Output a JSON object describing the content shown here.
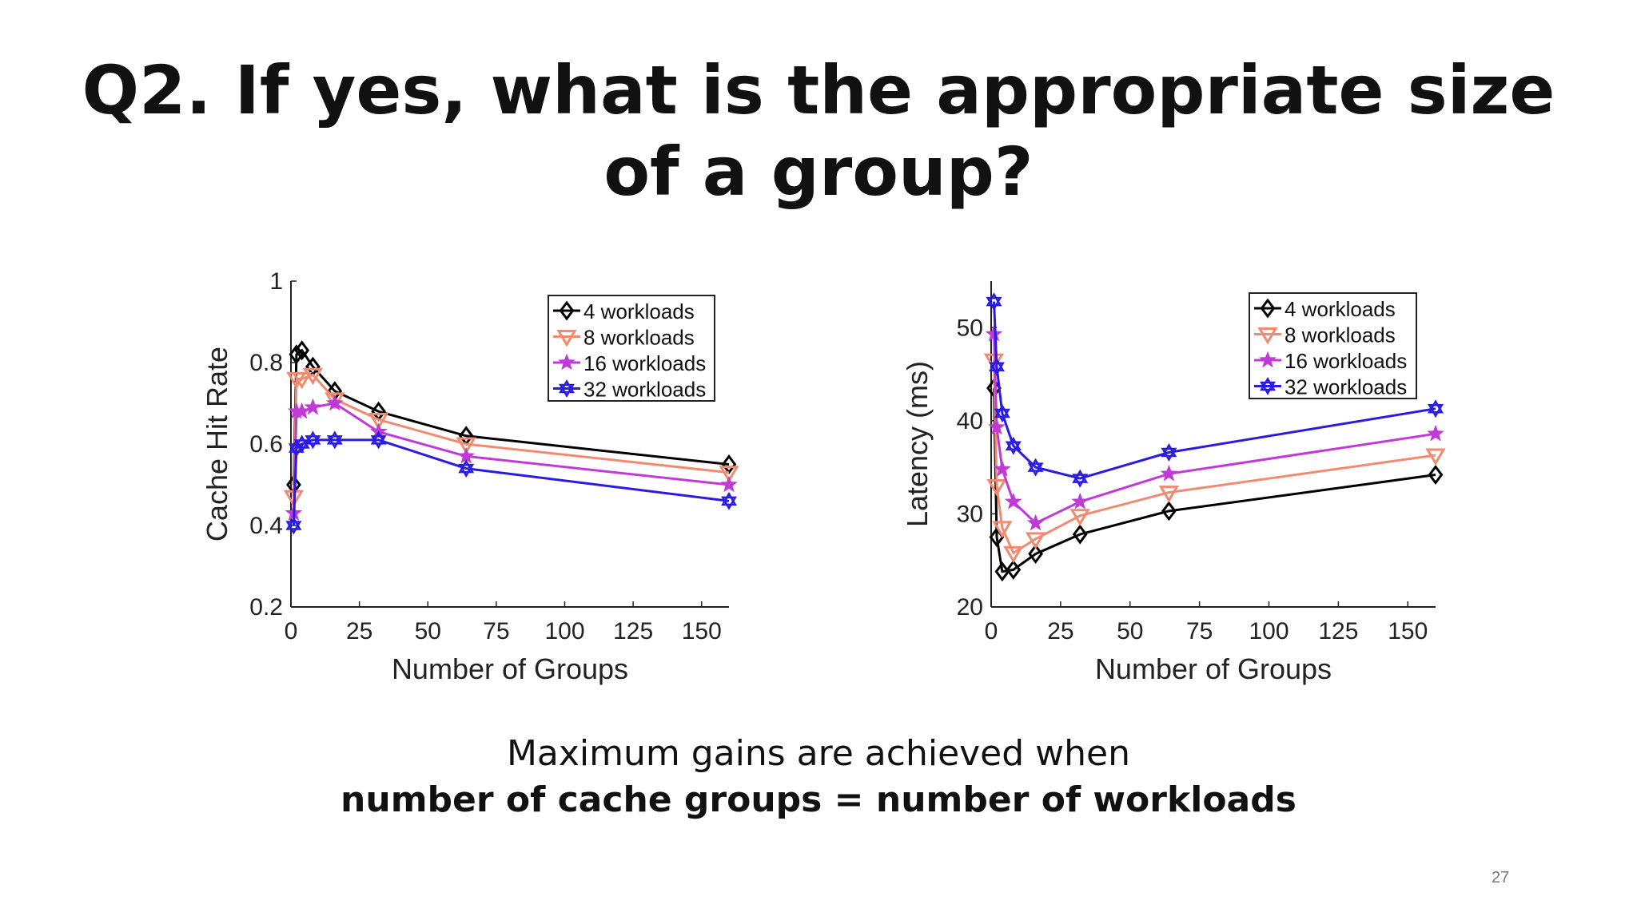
{
  "slide": {
    "title_line1": "Q2. If yes, what is the appropriate size",
    "title_line2": "of a group?",
    "caption_line1": "Maximum gains are achieved when",
    "caption_line2": "number of cache groups = number of workloads",
    "page_number": "27"
  },
  "chart_data": [
    {
      "type": "line",
      "title": "",
      "xlabel": "Number of Groups",
      "ylabel": "Cache Hit Rate",
      "xlim": [
        0,
        160
      ],
      "ylim": [
        0.2,
        1.0
      ],
      "xticks": [
        0,
        25,
        50,
        75,
        100,
        125,
        150
      ],
      "yticks": [
        0.2,
        0.4,
        0.6,
        0.8,
        1.0
      ],
      "ytick_labels": [
        "0.2",
        "0.4",
        "0.6",
        "0.8",
        "1"
      ],
      "grid": false,
      "legend_position": "top-right",
      "series": [
        {
          "name": "4 workloads",
          "color": "#000000",
          "marker": "diamond",
          "x": [
            1,
            2,
            4,
            8,
            16,
            32,
            64,
            160
          ],
          "y": [
            0.5,
            0.82,
            0.83,
            0.79,
            0.73,
            0.68,
            0.62,
            0.55
          ]
        },
        {
          "name": "8 workloads",
          "color": "#f08a70",
          "marker": "triangle-down",
          "x": [
            1,
            2,
            4,
            8,
            16,
            32,
            64,
            160
          ],
          "y": [
            0.47,
            0.76,
            0.76,
            0.77,
            0.71,
            0.66,
            0.6,
            0.53
          ]
        },
        {
          "name": "16 workloads",
          "color": "#c03ad8",
          "marker": "star",
          "x": [
            1,
            2,
            4,
            8,
            16,
            32,
            64,
            160
          ],
          "y": [
            0.43,
            0.68,
            0.68,
            0.69,
            0.7,
            0.63,
            0.57,
            0.5
          ]
        },
        {
          "name": "32 workloads",
          "color": "#2a1be0",
          "marker": "hexagram",
          "x": [
            1,
            2,
            4,
            8,
            16,
            32,
            64,
            160
          ],
          "y": [
            0.4,
            0.59,
            0.6,
            0.61,
            0.61,
            0.61,
            0.54,
            0.46
          ]
        }
      ]
    },
    {
      "type": "line",
      "title": "",
      "xlabel": "Number of Groups",
      "ylabel": "Latency (ms)",
      "xlim": [
        0,
        160
      ],
      "ylim": [
        20,
        55
      ],
      "xticks": [
        0,
        25,
        50,
        75,
        100,
        125,
        150
      ],
      "yticks": [
        20,
        30,
        40,
        50
      ],
      "ytick_labels": [
        "20",
        "30",
        "40",
        "50"
      ],
      "grid": false,
      "legend_position": "top-right",
      "series": [
        {
          "name": "4 workloads",
          "color": "#000000",
          "marker": "diamond",
          "x": [
            1,
            2,
            4,
            8,
            16,
            32,
            64,
            160
          ],
          "y": [
            43.5,
            27.5,
            23.8,
            24.0,
            25.7,
            27.8,
            30.3,
            34.2
          ]
        },
        {
          "name": "8 workloads",
          "color": "#f08a70",
          "marker": "triangle-down",
          "x": [
            1,
            2,
            4,
            8,
            16,
            32,
            64,
            160
          ],
          "y": [
            46.5,
            33.0,
            28.5,
            25.8,
            27.3,
            29.8,
            32.3,
            36.3
          ]
        },
        {
          "name": "16 workloads",
          "color": "#c03ad8",
          "marker": "star",
          "x": [
            1,
            2,
            4,
            8,
            16,
            32,
            64,
            160
          ],
          "y": [
            49.3,
            39.3,
            34.8,
            31.3,
            29.0,
            31.3,
            34.3,
            38.6
          ]
        },
        {
          "name": "32 workloads",
          "color": "#2a1be0",
          "marker": "hexagram",
          "x": [
            1,
            2,
            4,
            8,
            16,
            32,
            64,
            160
          ],
          "y": [
            52.8,
            45.8,
            40.8,
            37.3,
            35.0,
            33.8,
            36.6,
            41.3
          ]
        }
      ]
    }
  ]
}
